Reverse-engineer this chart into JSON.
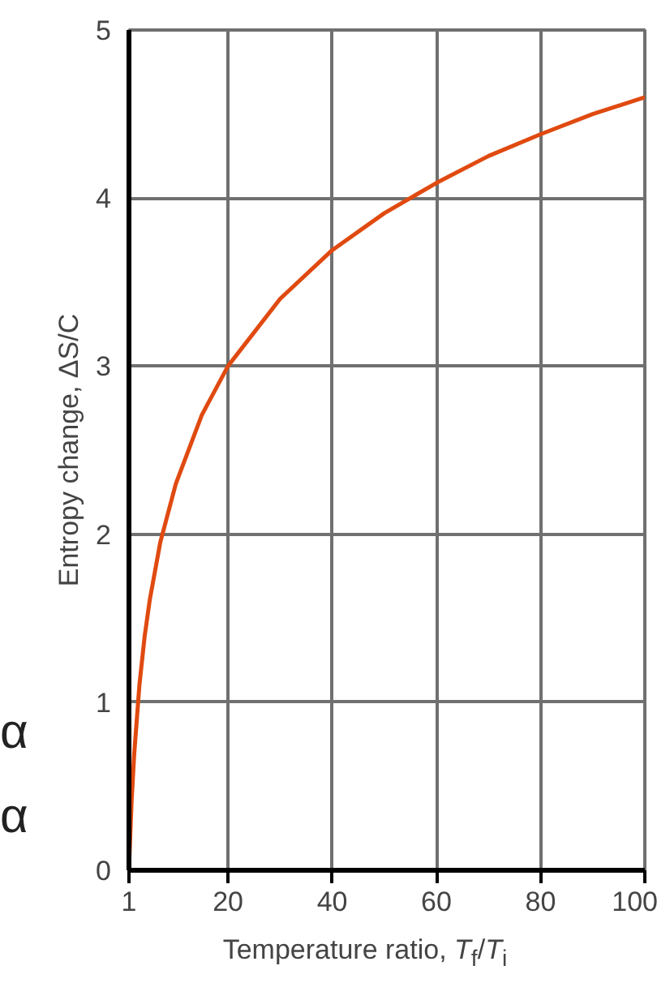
{
  "chart_data": {
    "type": "line",
    "xlabel": "Temperature ratio, T$_{f}$/T$_{i}$",
    "ylabel": "Entropy change, ΔS/C",
    "x": [
      1,
      1.5,
      2,
      3,
      4,
      5,
      7,
      10,
      15,
      20,
      30,
      40,
      50,
      60,
      70,
      80,
      90,
      100
    ],
    "series": [
      {
        "color": "#e04a10",
        "values": [
          0,
          0.41,
          0.69,
          1.1,
          1.39,
          1.61,
          1.95,
          2.3,
          2.71,
          3.0,
          3.4,
          3.69,
          3.91,
          4.09,
          4.25,
          4.38,
          4.5,
          4.6
        ]
      }
    ],
    "xlim": [
      1,
      100
    ],
    "ylim": [
      0,
      5
    ],
    "xticks": [
      1,
      20,
      40,
      60,
      80,
      100
    ],
    "yticks": [
      0,
      1,
      2,
      3,
      4,
      5
    ],
    "grid": true,
    "marker": "none",
    "line_style": "solid",
    "annotations": [
      "α",
      "α"
    ]
  }
}
